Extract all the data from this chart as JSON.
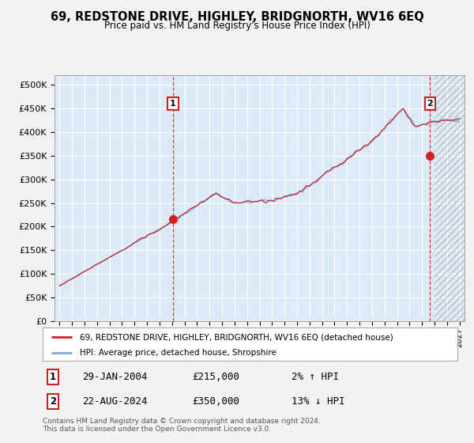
{
  "title": "69, REDSTONE DRIVE, HIGHLEY, BRIDGNORTH, WV16 6EQ",
  "subtitle": "Price paid vs. HM Land Registry's House Price Index (HPI)",
  "background_color": "#dce9f7",
  "hpi_color": "#7aaadd",
  "price_color": "#cc2222",
  "annotation1_date": "29-JAN-2004",
  "annotation1_price": 215000,
  "annotation1_label": "2% ↑ HPI",
  "annotation1_year": 2004.08,
  "annotation2_date": "22-AUG-2024",
  "annotation2_price": 350000,
  "annotation2_label": "13% ↓ HPI",
  "annotation2_year": 2024.64,
  "legend_line1": "69, REDSTONE DRIVE, HIGHLEY, BRIDGNORTH, WV16 6EQ (detached house)",
  "legend_line2": "HPI: Average price, detached house, Shropshire",
  "footer": "Contains HM Land Registry data © Crown copyright and database right 2024.\nThis data is licensed under the Open Government Licence v3.0.",
  "xlim_left": 1994.6,
  "xlim_right": 2027.4,
  "ylim_bottom": 0,
  "ylim_top": 520000,
  "hatch_start": 2025.0,
  "fig_bg": "#f2f2f2"
}
